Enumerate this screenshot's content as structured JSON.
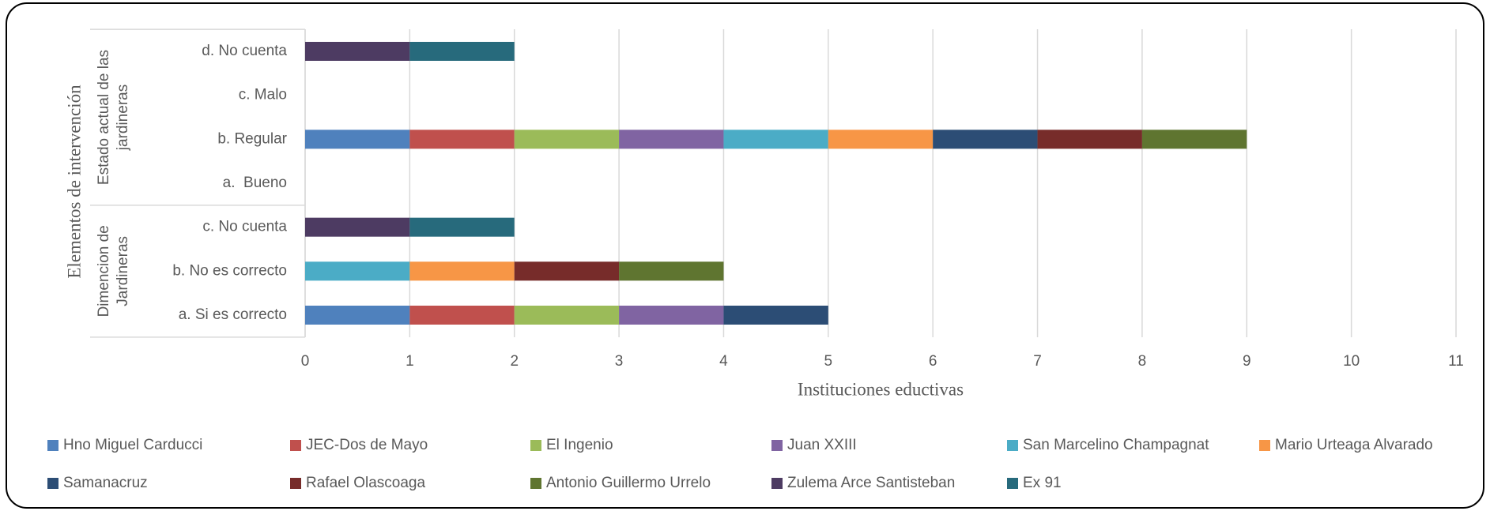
{
  "chart_data": {
    "type": "stacked_barh",
    "ylabel": "Elementos de intervención",
    "xlabel": "Instituciones eductivas",
    "groups": [
      {
        "label": [
          "Dimencion de",
          "Jardineras"
        ],
        "categories": [
          "a. Si es correcto",
          "b. No es correcto",
          "c. No cuenta"
        ]
      },
      {
        "label": [
          "Estado actual de las",
          "jardineras"
        ],
        "categories": [
          "a.  Bueno",
          "b. Regular",
          "c. Malo",
          "d. No cuenta"
        ]
      }
    ],
    "xlim": [
      0,
      11
    ],
    "xticks": [
      0,
      1,
      2,
      3,
      4,
      5,
      6,
      7,
      8,
      9,
      10,
      11
    ],
    "grid": true,
    "legend": "bottom",
    "series": [
      {
        "name": "Hno Miguel Carducci",
        "color": "#4f81bd",
        "values": [
          1,
          0,
          0,
          0,
          1,
          0,
          0
        ]
      },
      {
        "name": "JEC-Dos de Mayo",
        "color": "#c0504d",
        "values": [
          1,
          0,
          0,
          0,
          1,
          0,
          0
        ]
      },
      {
        "name": "El Ingenio",
        "color": "#9bbb59",
        "values": [
          1,
          0,
          0,
          0,
          1,
          0,
          0
        ]
      },
      {
        "name": "Juan XXIII",
        "color": "#8064a2",
        "values": [
          1,
          0,
          0,
          0,
          1,
          0,
          0
        ]
      },
      {
        "name": "San Marcelino Champagnat",
        "color": "#4bacc6",
        "values": [
          0,
          1,
          0,
          0,
          1,
          0,
          0
        ]
      },
      {
        "name": "Mario Urteaga Alvarado",
        "color": "#f79646",
        "values": [
          0,
          1,
          0,
          0,
          1,
          0,
          0
        ]
      },
      {
        "name": "Samanacruz",
        "color": "#2c4d75",
        "values": [
          1,
          0,
          0,
          0,
          1,
          0,
          0
        ]
      },
      {
        "name": "Rafael Olascoaga",
        "color": "#772c2a",
        "values": [
          0,
          1,
          0,
          0,
          1,
          0,
          0
        ]
      },
      {
        "name": "Antonio Guillermo Urrelo",
        "color": "#5f7530",
        "values": [
          0,
          1,
          0,
          0,
          1,
          0,
          0
        ]
      },
      {
        "name": "Zulema Arce Santisteban",
        "color": "#4d3b62",
        "values": [
          0,
          0,
          1,
          0,
          0,
          0,
          1
        ]
      },
      {
        "name": "Ex 91",
        "color": "#276a7c",
        "values": [
          0,
          0,
          1,
          0,
          0,
          0,
          1
        ]
      }
    ]
  }
}
